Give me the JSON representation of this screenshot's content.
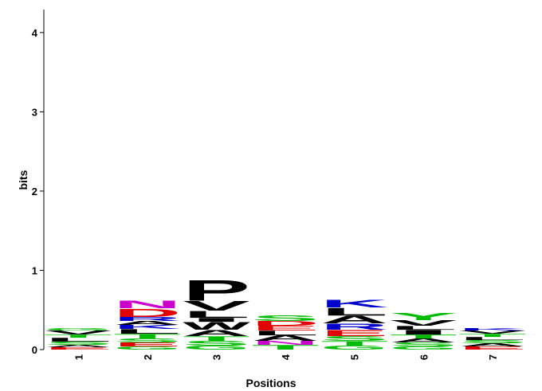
{
  "chart_data": {
    "type": "logo",
    "xlabel": "Positions",
    "ylabel": "bits",
    "ylim": [
      0,
      4.29
    ],
    "yticks": [
      0,
      1,
      2,
      3,
      4
    ],
    "categories": [
      "1",
      "2",
      "3",
      "4",
      "5",
      "6",
      "7"
    ],
    "colors": {
      "D": "#e00000",
      "E": "#e00000",
      "K": "#0000cc",
      "R": "#0000cc",
      "H": "#0000cc",
      "N": "#cc00cc",
      "Q": "#cc00cc",
      "G": "#00bb00",
      "S": "#00bb00",
      "T": "#00bb00",
      "Y": "#00bb00",
      "C": "#00bb00",
      "A": "#000000",
      "V": "#000000",
      "L": "#000000",
      "I": "#000000",
      "P": "#000000",
      "W": "#000000",
      "F": "#000000",
      "M": "#000000"
    },
    "stacks": [
      {
        "letters": [
          "E",
          "A",
          "S",
          "L",
          "T",
          "V",
          "G"
        ],
        "values": [
          0.03,
          0.03,
          0.04,
          0.05,
          0.04,
          0.05,
          0.03
        ]
      },
      {
        "letters": [
          "G",
          "E",
          "S",
          "T",
          "L",
          "K",
          "A",
          "R",
          "D",
          "N"
        ],
        "values": [
          0.04,
          0.05,
          0.05,
          0.06,
          0.06,
          0.05,
          0.05,
          0.05,
          0.11,
          0.1
        ]
      },
      {
        "letters": [
          "G",
          "S",
          "T",
          "A",
          "W",
          "I",
          "L",
          "V",
          "P"
        ],
        "values": [
          0.05,
          0.06,
          0.06,
          0.08,
          0.1,
          0.05,
          0.09,
          0.13,
          0.27
        ]
      },
      {
        "letters": [
          "T",
          "N",
          "A",
          "L",
          "E",
          "D",
          "S"
        ],
        "values": [
          0.06,
          0.05,
          0.07,
          0.06,
          0.06,
          0.06,
          0.07
        ]
      },
      {
        "letters": [
          "G",
          "T",
          "S",
          "E",
          "R",
          "A",
          "L",
          "K"
        ],
        "values": [
          0.05,
          0.06,
          0.06,
          0.08,
          0.08,
          0.1,
          0.1,
          0.1
        ]
      },
      {
        "letters": [
          "G",
          "S",
          "A",
          "T",
          "I",
          "L",
          "V",
          "Y"
        ],
        "values": [
          0.04,
          0.05,
          0.05,
          0.05,
          0.06,
          0.05,
          0.07,
          0.09
        ]
      },
      {
        "letters": [
          "E",
          "A",
          "S",
          "L",
          "T",
          "V",
          "K"
        ],
        "values": [
          0.04,
          0.04,
          0.04,
          0.04,
          0.04,
          0.04,
          0.03
        ]
      }
    ]
  }
}
